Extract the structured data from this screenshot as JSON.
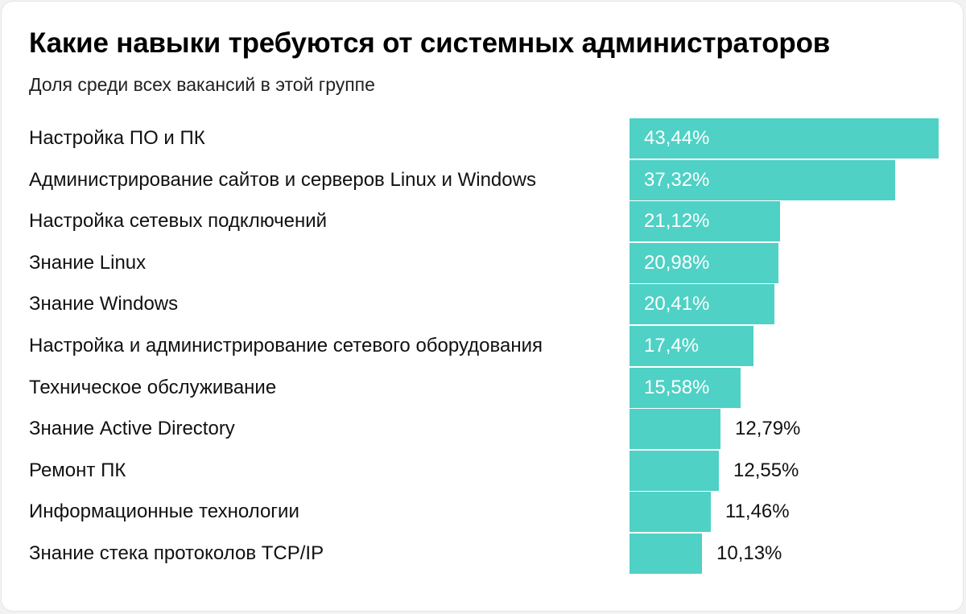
{
  "chart_data": {
    "type": "bar",
    "orientation": "horizontal",
    "title": "Какие навыки требуются от системных администраторов",
    "subtitle": "Доля среди всех вакансий в этой группе",
    "unit": "%",
    "xlim": [
      0,
      43.44
    ],
    "bar_color": "#4fd1c5",
    "grid": false,
    "categories": [
      "Настройка ПО и ПК",
      "Администрирование сайтов и серверов Linux и Windows",
      "Настройка сетевых подключений",
      "Знание Linux",
      "Знание Windows",
      "Настройка и администрирование сетевого оборудования",
      "Техническое обслуживание",
      "Знание Active Directory",
      "Ремонт ПК",
      "Информационные технологии",
      "Знание стека протоколов TCP/IP"
    ],
    "values": [
      43.44,
      37.32,
      21.12,
      20.98,
      20.41,
      17.4,
      15.58,
      12.79,
      12.55,
      11.46,
      10.13
    ],
    "value_labels": [
      "43,44%",
      "37,32%",
      "21,12%",
      "20,98%",
      "20,41%",
      "17,4%",
      "15,58%",
      "12,79%",
      "12,55%",
      "11,46%",
      "10,13%"
    ]
  }
}
